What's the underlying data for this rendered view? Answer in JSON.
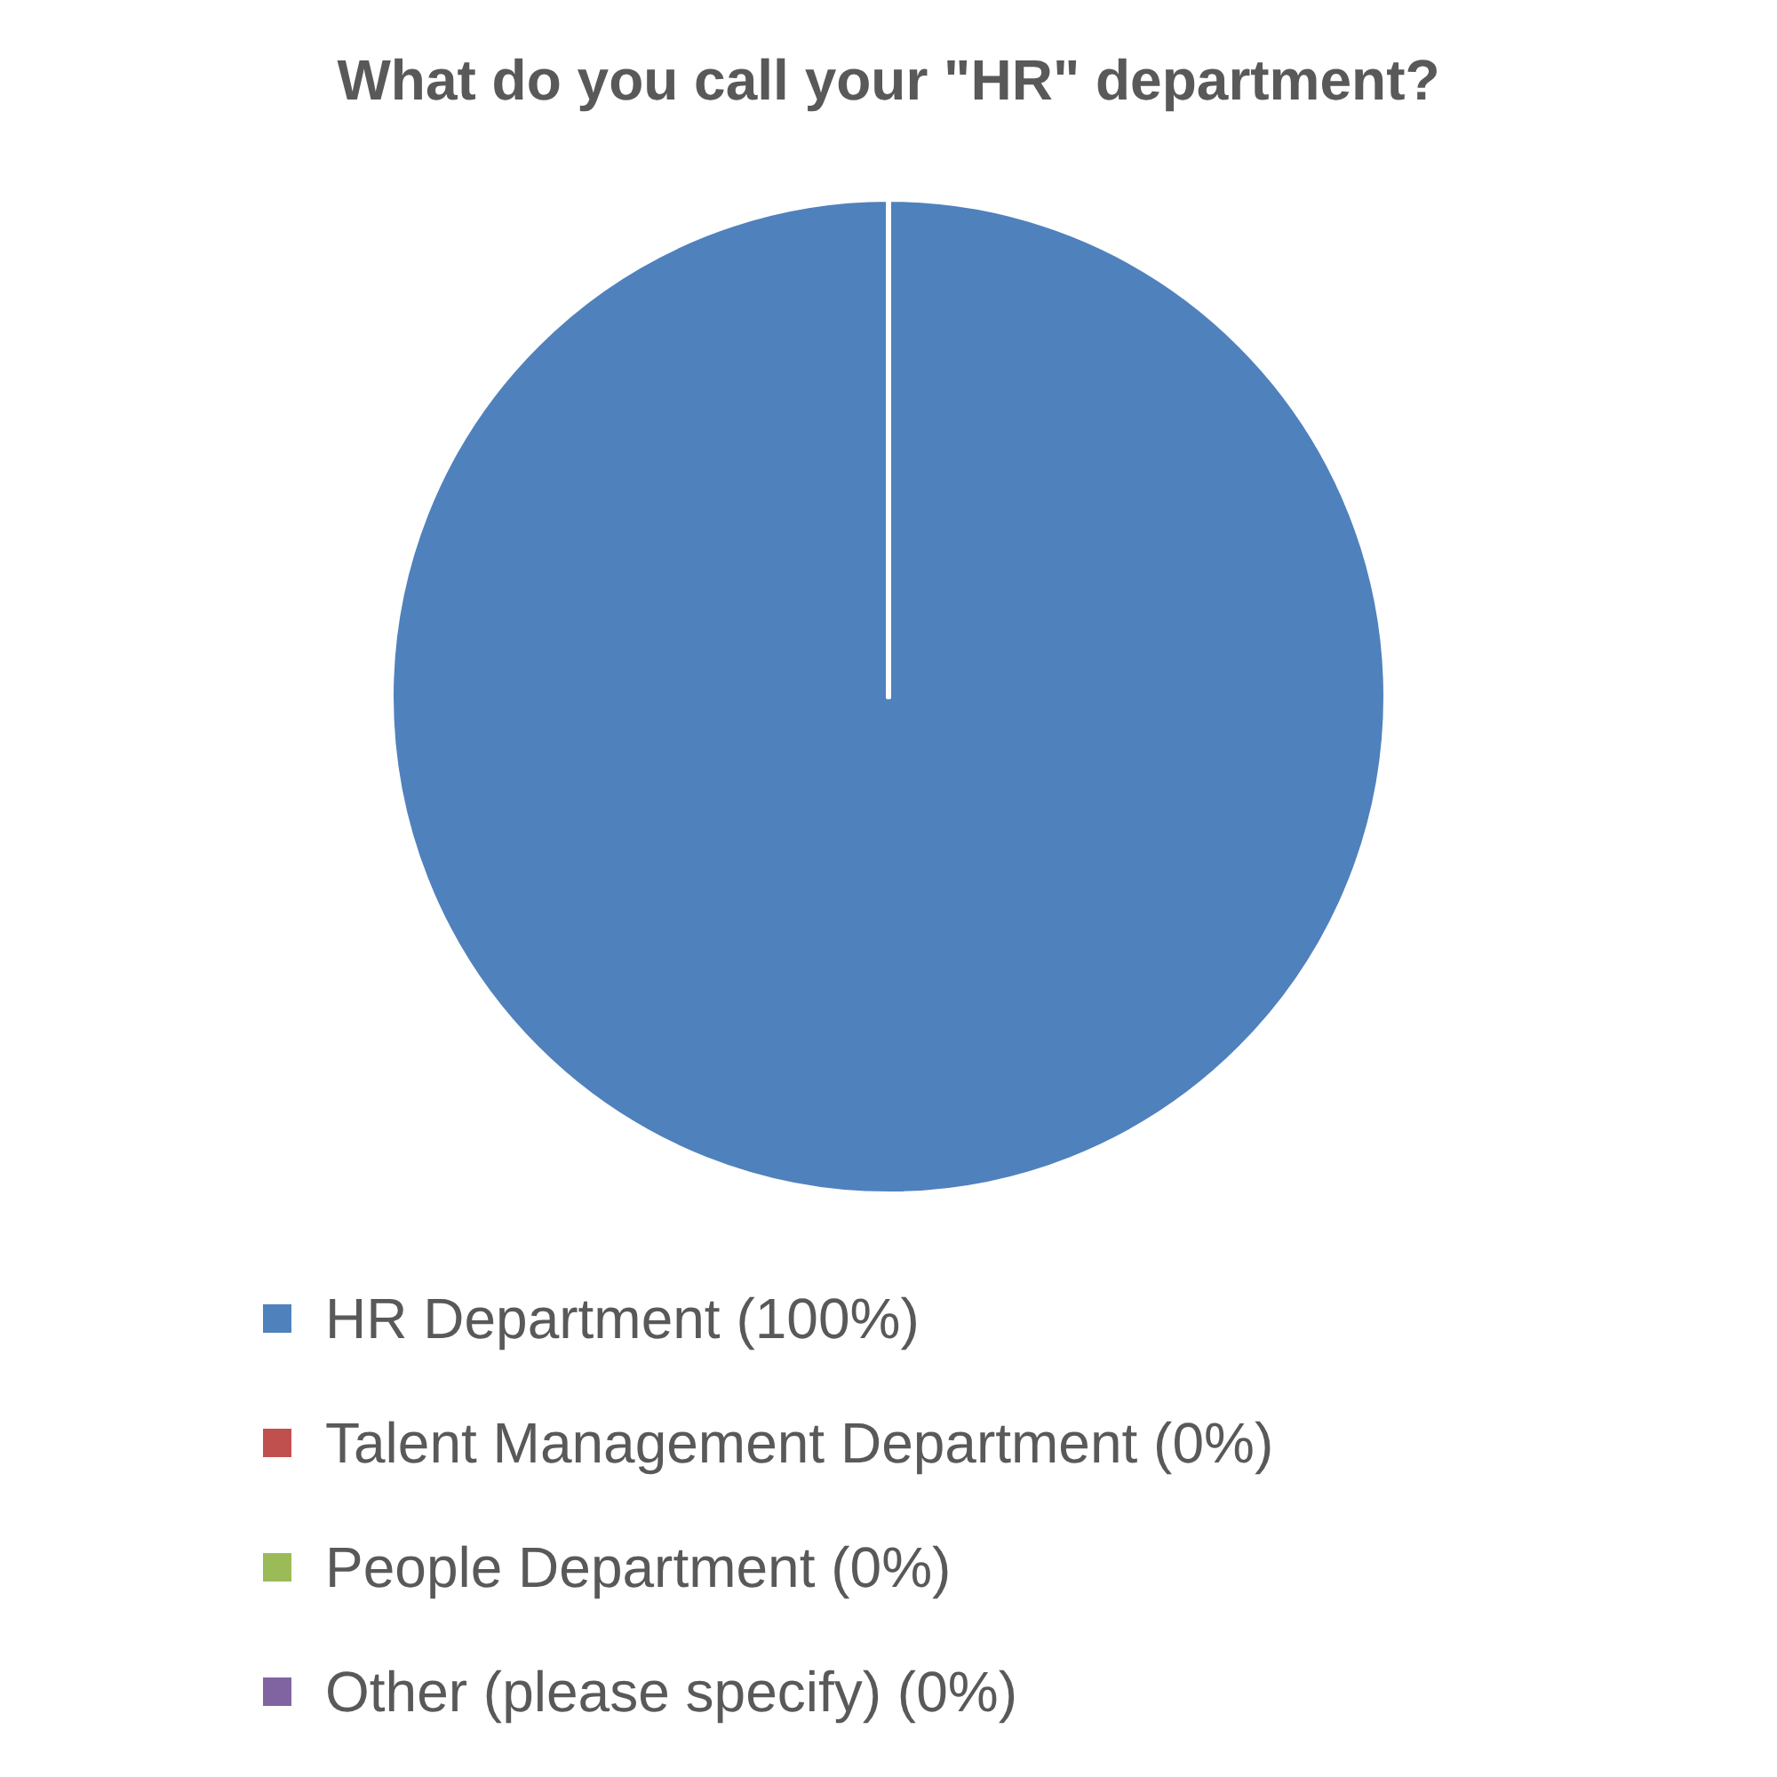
{
  "chart_data": {
    "type": "pie",
    "title": "What do you call your \"HR\" department?",
    "categories": [
      "HR Department (100%)",
      "Talent Management Department (0%)",
      "People Department (0%)",
      "Other (please specify) (0%)"
    ],
    "values": [
      100,
      0,
      0,
      0
    ],
    "colors": [
      "#4f81bd",
      "#c0504d",
      "#9bbb59",
      "#8064a2"
    ],
    "legend": "bottom"
  }
}
